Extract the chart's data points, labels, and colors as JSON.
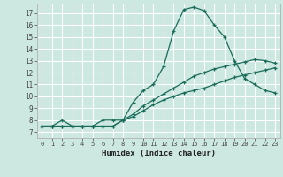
{
  "xlabel": "Humidex (Indice chaleur)",
  "background_color": "#cce8e0",
  "grid_color": "#ffffff",
  "line_color": "#1a6b5a",
  "xlim": [
    -0.5,
    23.5
  ],
  "ylim": [
    6.5,
    17.8
  ],
  "xticks": [
    0,
    1,
    2,
    3,
    4,
    5,
    6,
    7,
    8,
    9,
    10,
    11,
    12,
    13,
    14,
    15,
    16,
    17,
    18,
    19,
    20,
    21,
    22,
    23
  ],
  "yticks": [
    7,
    8,
    9,
    10,
    11,
    12,
    13,
    14,
    15,
    16,
    17
  ],
  "series1_x": [
    0,
    1,
    2,
    3,
    4,
    5,
    6,
    7,
    8,
    9,
    10,
    11,
    12,
    13,
    14,
    15,
    16,
    17,
    18,
    19,
    20,
    21,
    22,
    23
  ],
  "series1_y": [
    7.5,
    7.5,
    8.0,
    7.5,
    7.5,
    7.5,
    8.0,
    8.0,
    8.0,
    9.5,
    10.5,
    11.0,
    12.5,
    15.5,
    17.3,
    17.5,
    17.2,
    16.0,
    15.0,
    13.0,
    11.5,
    11.0,
    10.5,
    10.3
  ],
  "series2_x": [
    0,
    1,
    2,
    3,
    4,
    5,
    6,
    7,
    8,
    9,
    10,
    11,
    12,
    13,
    14,
    15,
    16,
    17,
    18,
    19,
    20,
    21,
    22,
    23
  ],
  "series2_y": [
    7.5,
    7.5,
    7.5,
    7.5,
    7.5,
    7.5,
    7.5,
    7.5,
    8.0,
    8.5,
    9.2,
    9.7,
    10.2,
    10.7,
    11.2,
    11.7,
    12.0,
    12.3,
    12.5,
    12.7,
    12.9,
    13.1,
    13.0,
    12.8
  ],
  "series3_x": [
    0,
    1,
    2,
    3,
    4,
    5,
    6,
    7,
    8,
    9,
    10,
    11,
    12,
    13,
    14,
    15,
    16,
    17,
    18,
    19,
    20,
    21,
    22,
    23
  ],
  "series3_y": [
    7.5,
    7.5,
    7.5,
    7.5,
    7.5,
    7.5,
    7.5,
    7.5,
    8.0,
    8.3,
    8.8,
    9.3,
    9.7,
    10.0,
    10.3,
    10.5,
    10.7,
    11.0,
    11.3,
    11.6,
    11.8,
    12.0,
    12.2,
    12.4
  ]
}
